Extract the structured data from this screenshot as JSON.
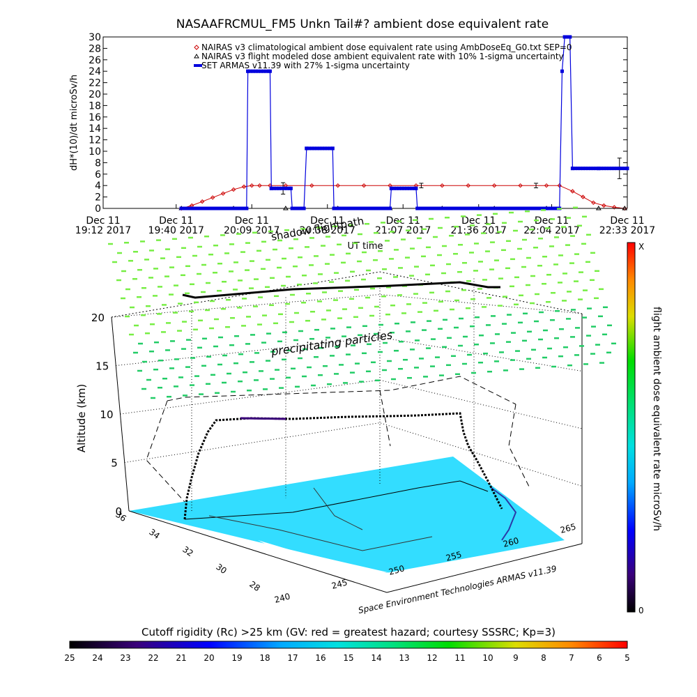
{
  "colors": {
    "nairas_clim": "#cc0000",
    "nairas_flight": "#000000",
    "armas": "#0000dd",
    "grid": "#000000",
    "cutoff_fill": "#33ddff",
    "particles": "#44dd55"
  },
  "chart_data": [
    {
      "type": "line",
      "title": "NASAAFRCMUL_FM5 Unkn Tail#? ambient dose equivalent rate",
      "ylabel": "dH*(10)/dt microSv/h",
      "xlabel": "UT time",
      "ylim": [
        0,
        30
      ],
      "yticks": [
        "0",
        "2",
        "4",
        "6",
        "8",
        "10",
        "12",
        "14",
        "16",
        "18",
        "20",
        "22",
        "24",
        "26",
        "28",
        "30"
      ],
      "xticks": [
        {
          "top": "Dec 11",
          "bottom": "19:12 2017",
          "t": 0
        },
        {
          "top": "Dec 11",
          "bottom": "19:40 2017",
          "t": 28
        },
        {
          "top": "Dec 11",
          "bottom": "20:09 2017",
          "t": 57
        },
        {
          "top": "Dec 11",
          "bottom": "20:38 2017",
          "t": 86
        },
        {
          "top": "Dec 11",
          "bottom": "21:07 2017",
          "t": 115
        },
        {
          "top": "Dec 11",
          "bottom": "21:36 2017",
          "t": 144
        },
        {
          "top": "Dec 11",
          "bottom": "22:04 2017",
          "t": 172
        },
        {
          "top": "Dec 11",
          "bottom": "22:33 2017",
          "t": 201
        }
      ],
      "xlim": [
        0,
        201
      ],
      "legend_placement": "top-right",
      "series": [
        {
          "name": "NAIRAS v3 climatological ambient dose equivalent rate using AmbDoseEq_G0.txt SEP=0",
          "marker": "diamond",
          "x": [
            30,
            34,
            38,
            42,
            46,
            50,
            54,
            57,
            60,
            64,
            70,
            80,
            90,
            100,
            110,
            120,
            130,
            140,
            150,
            160,
            170,
            175,
            180,
            184,
            188,
            192,
            196,
            200
          ],
          "y": [
            0,
            0.5,
            1.2,
            1.9,
            2.6,
            3.3,
            3.8,
            4.0,
            4.0,
            4.0,
            4.0,
            4.0,
            4.0,
            4.0,
            4.0,
            4.0,
            4.0,
            4.0,
            4.0,
            4.0,
            4.0,
            4.0,
            3.0,
            2.0,
            1.0,
            0.5,
            0.2,
            0
          ]
        },
        {
          "name": "NAIRAS v3 flight modeled dose ambient equivalent rate with 10% 1-sigma uncertainty",
          "marker": "triangle",
          "x": [
            30,
            50,
            70,
            90,
            110,
            130,
            150,
            170,
            190,
            200
          ],
          "y": [
            0,
            0,
            0,
            0,
            0,
            0,
            0,
            0,
            0,
            0
          ],
          "error_points": [
            {
              "x": 69,
              "y": 3.5,
              "err": 1.0
            },
            {
              "x": 122,
              "y": 4.0,
              "err": 0.4
            },
            {
              "x": 166,
              "y": 4.0,
              "err": 0.4
            },
            {
              "x": 198,
              "y": 7.0,
              "err": 1.8
            }
          ]
        },
        {
          "name": "SET ARMAS v11.39 with 27% 1-sigma uncertainty",
          "marker": "square",
          "x": [
            30,
            55,
            55.5,
            64,
            64.5,
            72,
            72.5,
            77,
            78,
            88,
            88.5,
            110,
            110.5,
            120,
            120.5,
            175,
            176,
            177,
            179,
            180,
            190,
            201
          ],
          "y": [
            0,
            0,
            24,
            24,
            3.5,
            3.5,
            0,
            0,
            10.5,
            10.5,
            0,
            0,
            3.5,
            3.5,
            0,
            0,
            24,
            30,
            30,
            7,
            7,
            7
          ]
        }
      ]
    },
    {
      "type": "scatter",
      "title": "",
      "zlabel": "Altitude (km)",
      "zticks": [
        "0",
        "5",
        "10",
        "15",
        "20"
      ],
      "lat_ticks": [
        "36",
        "34",
        "32",
        "30",
        "28"
      ],
      "lon_ticks": [
        "240",
        "245",
        "250",
        "255",
        "260",
        "265"
      ],
      "annotations": [
        "precipitating particles",
        "shadow flightpath",
        "Space Environment Technologies ARMAS v11.39"
      ],
      "colorbar": {
        "label": "flight ambient dose equivalent rate microSv/h",
        "max_label": "X",
        "min_label": "0"
      },
      "flight_track": {
        "altitude_km": [
          0,
          2,
          4,
          6,
          8,
          9.5,
          10,
          10,
          10,
          10,
          10,
          10.2,
          10.3,
          10,
          8,
          5,
          2,
          0
        ]
      }
    },
    {
      "type": "heatmap",
      "title": "Cutoff rigidity (Rc) >25 km (GV: red = greatest hazard; courtesy SSSRC; Kp=3)",
      "scale_labels": [
        "25",
        "24",
        "23",
        "22",
        "21",
        "20",
        "19",
        "18",
        "17",
        "16",
        "15",
        "14",
        "13",
        "12",
        "11",
        "10",
        "9",
        "8",
        "7",
        "6",
        "5"
      ]
    }
  ]
}
